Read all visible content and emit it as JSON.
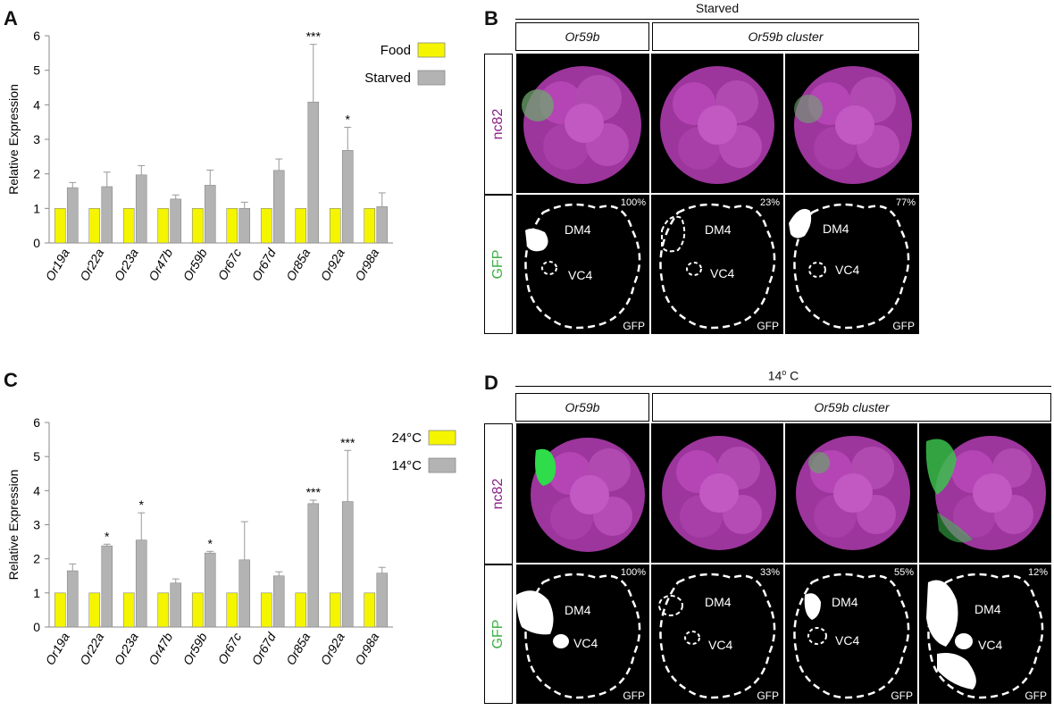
{
  "panels": {
    "a": "A",
    "b": "B",
    "c": "C",
    "d": "D"
  },
  "chart_data": [
    {
      "type": "bar",
      "ylabel": "Relative Expression",
      "ylim": [
        0,
        6
      ],
      "yticks": [
        "0",
        "1",
        "2",
        "3",
        "4",
        "5",
        "6"
      ],
      "categories": [
        "Or19a",
        "Or22a",
        "Or23a",
        "Or47b",
        "Or59b",
        "Or67c",
        "Or67d",
        "Or85a",
        "Or92a",
        "Or98a"
      ],
      "series": [
        {
          "name": "Food",
          "color": "#f5f500",
          "values": [
            1,
            1,
            1,
            1,
            1,
            1,
            1,
            1,
            1,
            1
          ]
        },
        {
          "name": "Starved",
          "color": "#b3b3b3",
          "values": [
            1.6,
            1.63,
            1.97,
            1.27,
            1.67,
            1.0,
            2.1,
            4.08,
            2.68,
            1.05
          ],
          "errors": [
            0.15,
            0.42,
            0.27,
            0.12,
            0.44,
            0.18,
            0.33,
            1.67,
            0.67,
            0.4
          ]
        }
      ],
      "significance": [
        "",
        "",
        "",
        "",
        "",
        "",
        "",
        "***",
        "*",
        ""
      ],
      "legend": "top-right"
    },
    {
      "type": "bar",
      "ylabel": "Relative Expression",
      "ylim": [
        0,
        6
      ],
      "yticks": [
        "0",
        "1",
        "2",
        "3",
        "4",
        "5",
        "6"
      ],
      "categories": [
        "Or19a",
        "Or22a",
        "Or23a",
        "Or47b",
        "Or59b",
        "Or67c",
        "Or67d",
        "Or85a",
        "Or92a",
        "Or98a"
      ],
      "series": [
        {
          "name": "24°C",
          "color": "#f5f500",
          "values": [
            1,
            1,
            1,
            1,
            1,
            1,
            1,
            1,
            1,
            1
          ]
        },
        {
          "name": "14°C",
          "color": "#b3b3b3",
          "values": [
            1.65,
            2.38,
            2.55,
            1.29,
            2.17,
            1.97,
            1.5,
            3.62,
            3.68,
            1.58
          ],
          "errors": [
            0.2,
            0.05,
            0.8,
            0.12,
            0.05,
            1.12,
            0.12,
            0.1,
            1.5,
            0.17
          ]
        }
      ],
      "significance": [
        "",
        "*",
        "*",
        "",
        "*",
        "",
        "",
        "***",
        "***",
        ""
      ],
      "legend": "top-right"
    }
  ],
  "panel_b": {
    "title": "Starved",
    "col_labels": [
      "Or59b",
      "Or59b cluster"
    ],
    "row_labels": [
      "nc82",
      "GFP"
    ],
    "percents": [
      "100%",
      "23%",
      "77%"
    ],
    "dm4": "DM4",
    "vc4": "VC4",
    "gfp": "GFP"
  },
  "panel_d": {
    "title_main": "14",
    "title_sup": "o",
    "title_unit": " C",
    "col_labels": [
      "Or59b",
      "Or59b cluster"
    ],
    "row_labels": [
      "nc82",
      "GFP"
    ],
    "percents": [
      "100%",
      "33%",
      "55%",
      "12%"
    ],
    "dm4": "DM4",
    "vc4": "VC4",
    "gfp": "GFP"
  }
}
